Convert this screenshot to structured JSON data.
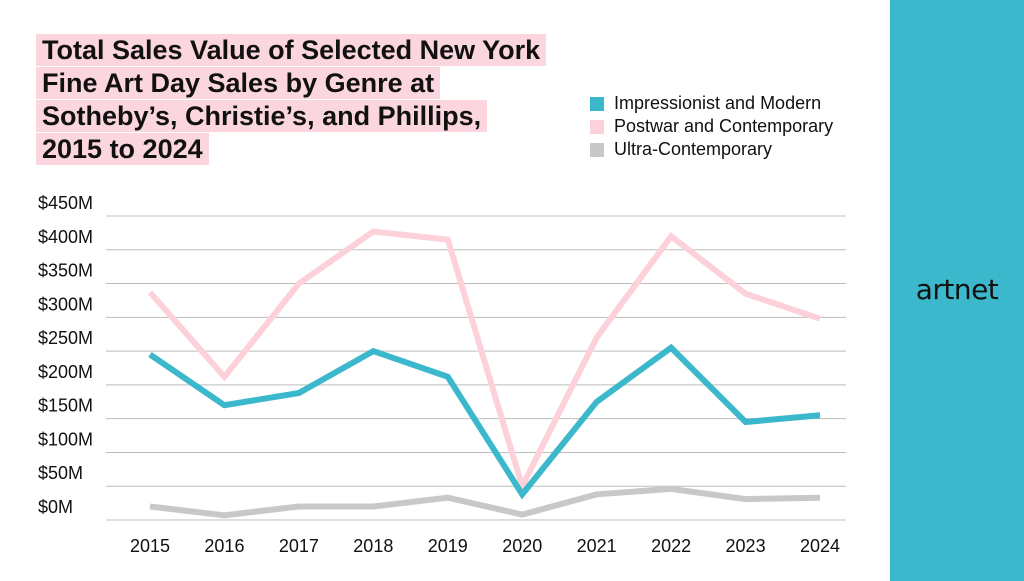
{
  "brand": "artnet",
  "chart_data": {
    "type": "line",
    "title": "Total Sales Value of Selected New York Fine Art Day Sales by Genre at Sotheby’s, Christie’s, and Phillips, 2015 to 2024",
    "title_lines": [
      "Total Sales Value of Selected New York",
      "Fine Art Day Sales by Genre at",
      "Sotheby’s, Christie’s, and Phillips,",
      "2015 to 2024"
    ],
    "xlabel": "",
    "ylabel": "",
    "categories": [
      "2015",
      "2016",
      "2017",
      "2018",
      "2019",
      "2020",
      "2021",
      "2022",
      "2023",
      "2024"
    ],
    "ylim": [
      0,
      450
    ],
    "yticks": [
      0,
      50,
      100,
      150,
      200,
      250,
      300,
      350,
      400,
      450
    ],
    "ytick_labels": [
      "$0M",
      "$50M",
      "$100M",
      "$150M",
      "$200M",
      "$250M",
      "$300M",
      "$350M",
      "$400M",
      "$450M"
    ],
    "grid": true,
    "legend_position": "top-right",
    "series": [
      {
        "name": "Impressionist and Modern",
        "color": "#3bb8cc",
        "values": [
          245,
          170,
          188,
          250,
          212,
          38,
          175,
          255,
          145,
          155
        ]
      },
      {
        "name": "Postwar and Contemporary",
        "color": "#fcd1da",
        "values": [
          337,
          212,
          350,
          427,
          415,
          50,
          270,
          420,
          335,
          298
        ]
      },
      {
        "name": "Ultra-Contemporary",
        "color": "#c8c8c8",
        "values": [
          20,
          7,
          20,
          20,
          33,
          8,
          38,
          46,
          31,
          33
        ]
      }
    ]
  }
}
